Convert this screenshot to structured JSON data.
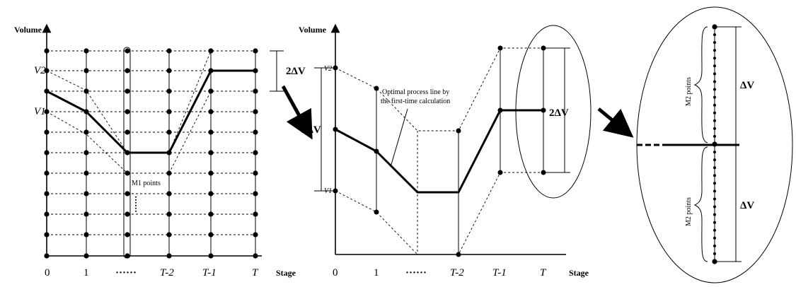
{
  "left_panel": {
    "y_axis_label": "Volume",
    "x_axis_label": "Stage",
    "x_ticks": [
      "0",
      "1",
      "······",
      "T-2",
      "T-1",
      "T"
    ],
    "v2_label": "V2",
    "v1_label": "V1",
    "delta_label": "2ΔV",
    "m_points_label": "M1 points"
  },
  "middle_panel": {
    "y_axis_label": "Volume",
    "x_axis_label": "Stage",
    "x_ticks": [
      "0",
      "1",
      "······",
      "T-2",
      "T-1",
      "T"
    ],
    "v2_label": "V2",
    "v1_label": "V1",
    "delta_left_label": "2ΔV",
    "delta_right_label": "2ΔV",
    "callout_line1": "Optimal process line by",
    "callout_line2": "the first-time calculation"
  },
  "right_panel": {
    "m_points_top": "M2 points",
    "m_points_bottom": "M2 points",
    "delta_top": "ΔV",
    "delta_bottom": "ΔV"
  }
}
